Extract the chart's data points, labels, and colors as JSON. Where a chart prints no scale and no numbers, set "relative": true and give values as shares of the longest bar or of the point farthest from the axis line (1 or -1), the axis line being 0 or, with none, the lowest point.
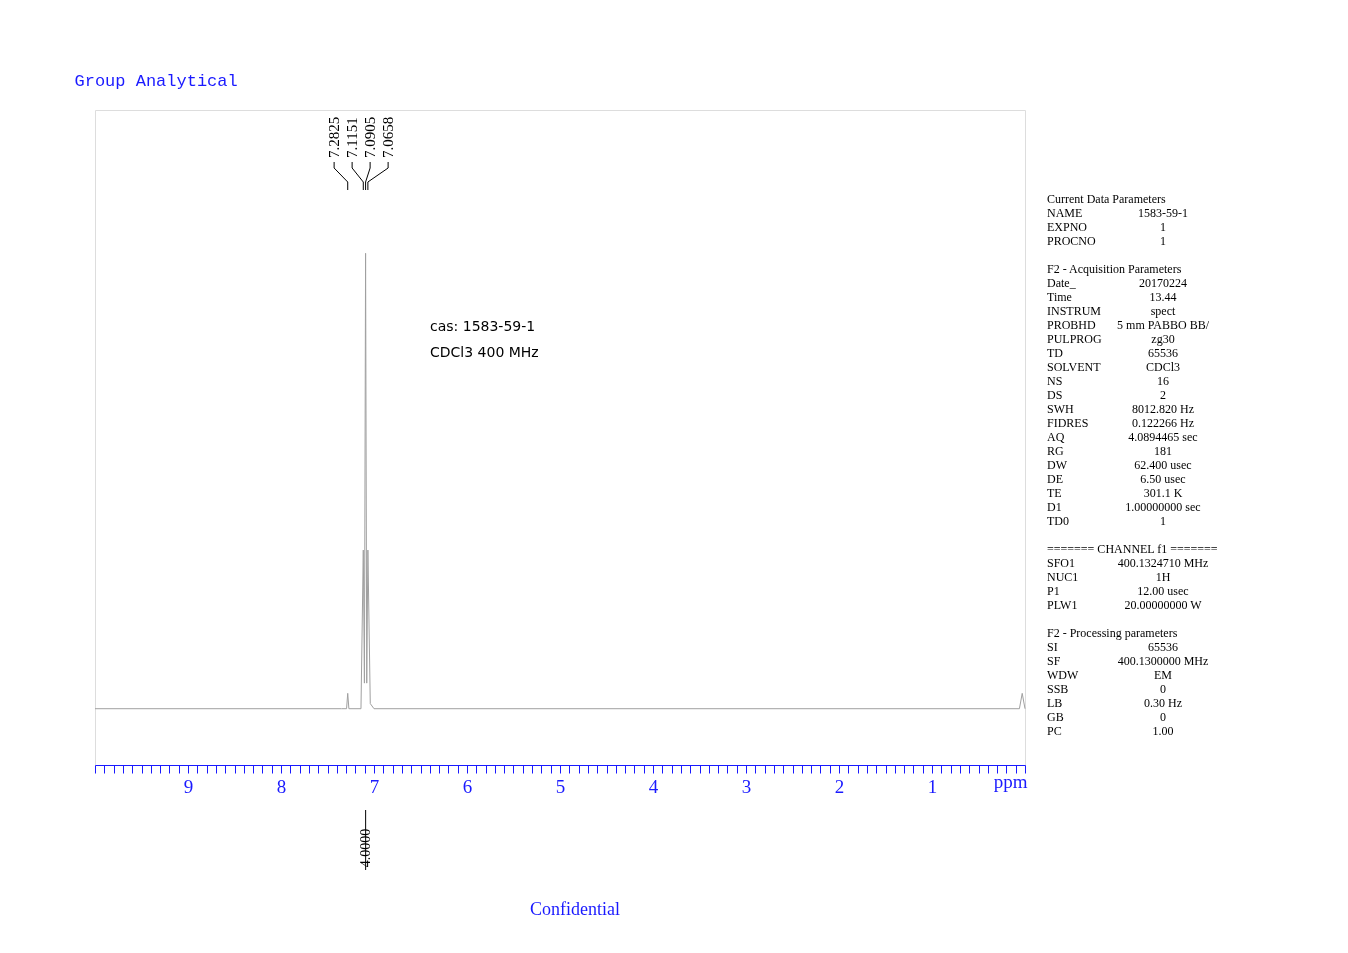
{
  "chart_data": {
    "type": "line",
    "title": "Group Analytical",
    "xlabel": "ppm",
    "relative": true,
    "x": [
      10,
      7.35,
      7.295,
      7.2825,
      7.27,
      7.14,
      7.1151,
      7.103,
      7.0905,
      7.078,
      7.0658,
      7.04,
      7.0,
      0.06,
      0.03,
      0.0
    ],
    "series": [
      {
        "color": "#a0a0a0",
        "values": [
          0.11,
          0.11,
          0.11,
          0.14,
          0.11,
          0.11,
          0.42,
          0.16,
          1,
          0.16,
          0.42,
          0.12,
          0.11,
          0.11,
          0.14,
          0.11
        ]
      }
    ],
    "xlim": [
      10,
      0
    ],
    "xticks": [
      {
        "value": 0,
        "label": null
      },
      {
        "value": 0.1,
        "label": null
      },
      {
        "value": 0.2,
        "label": null
      },
      {
        "value": 0.3,
        "label": null
      },
      {
        "value": 0.4,
        "label": null
      },
      {
        "value": 0.5,
        "label": null
      },
      {
        "value": 0.6,
        "label": null
      },
      {
        "value": 0.7,
        "label": null
      },
      {
        "value": 0.8,
        "label": null
      },
      {
        "value": 0.9,
        "label": null
      },
      1,
      {
        "value": 1.1,
        "label": null
      },
      {
        "value": 1.2,
        "label": null
      },
      {
        "value": 1.3,
        "label": null
      },
      {
        "value": 1.4,
        "label": null
      },
      {
        "value": 1.5,
        "label": null
      },
      {
        "value": 1.6,
        "label": null
      },
      {
        "value": 1.7,
        "label": null
      },
      {
        "value": 1.8,
        "label": null
      },
      {
        "value": 1.9,
        "label": null
      },
      2,
      {
        "value": 2.1,
        "label": null
      },
      {
        "value": 2.2,
        "label": null
      },
      {
        "value": 2.3,
        "label": null
      },
      {
        "value": 2.4,
        "label": null
      },
      {
        "value": 2.5,
        "label": null
      },
      {
        "value": 2.6,
        "label": null
      },
      {
        "value": 2.7,
        "label": null
      },
      {
        "value": 2.8,
        "label": null
      },
      {
        "value": 2.9,
        "label": null
      },
      3,
      {
        "value": 3.1,
        "label": null
      },
      {
        "value": 3.2,
        "label": null
      },
      {
        "value": 3.3,
        "label": null
      },
      {
        "value": 3.4,
        "label": null
      },
      {
        "value": 3.5,
        "label": null
      },
      {
        "value": 3.6,
        "label": null
      },
      {
        "value": 3.7,
        "label": null
      },
      {
        "value": 3.8,
        "label": null
      },
      {
        "value": 3.9,
        "label": null
      },
      4,
      {
        "value": 4.1,
        "label": null
      },
      {
        "value": 4.2,
        "label": null
      },
      {
        "value": 4.3,
        "label": null
      },
      {
        "value": 4.4,
        "label": null
      },
      {
        "value": 4.5,
        "label": null
      },
      {
        "value": 4.6,
        "label": null
      },
      {
        "value": 4.7,
        "label": null
      },
      {
        "value": 4.8,
        "label": null
      },
      {
        "value": 4.9,
        "label": null
      },
      5,
      {
        "value": 5.1,
        "label": null
      },
      {
        "value": 5.2,
        "label": null
      },
      {
        "value": 5.3,
        "label": null
      },
      {
        "value": 5.4,
        "label": null
      },
      {
        "value": 5.5,
        "label": null
      },
      {
        "value": 5.6,
        "label": null
      },
      {
        "value": 5.7,
        "label": null
      },
      {
        "value": 5.8,
        "label": null
      },
      {
        "value": 5.9,
        "label": null
      },
      6,
      {
        "value": 6.1,
        "label": null
      },
      {
        "value": 6.2,
        "label": null
      },
      {
        "value": 6.3,
        "label": null
      },
      {
        "value": 6.4,
        "label": null
      },
      {
        "value": 6.5,
        "label": null
      },
      {
        "value": 6.6,
        "label": null
      },
      {
        "value": 6.7,
        "label": null
      },
      {
        "value": 6.8,
        "label": null
      },
      {
        "value": 6.9,
        "label": null
      },
      7,
      {
        "value": 7.1,
        "label": null
      },
      {
        "value": 7.2,
        "label": null
      },
      {
        "value": 7.3,
        "label": null
      },
      {
        "value": 7.4,
        "label": null
      },
      {
        "value": 7.5,
        "label": null
      },
      {
        "value": 7.6,
        "label": null
      },
      {
        "value": 7.7,
        "label": null
      },
      {
        "value": 7.8,
        "label": null
      },
      {
        "value": 7.9,
        "label": null
      },
      8,
      {
        "value": 8.1,
        "label": null
      },
      {
        "value": 8.2,
        "label": null
      },
      {
        "value": 8.3,
        "label": null
      },
      {
        "value": 8.4,
        "label": null
      },
      {
        "value": 8.5,
        "label": null
      },
      {
        "value": 8.6,
        "label": null
      },
      {
        "value": 8.7,
        "label": null
      },
      {
        "value": 8.8,
        "label": null
      },
      {
        "value": 8.9,
        "label": null
      },
      9,
      {
        "value": 9.1,
        "label": null
      },
      {
        "value": 9.2,
        "label": null
      },
      {
        "value": 9.3,
        "label": null
      },
      {
        "value": 9.4,
        "label": null
      },
      {
        "value": 9.5,
        "label": null
      },
      {
        "value": 9.6,
        "label": null
      },
      {
        "value": 9.7,
        "label": null
      },
      {
        "value": 9.8,
        "label": null
      },
      {
        "value": 9.9,
        "label": null
      },
      {
        "value": 10,
        "label": null
      }
    ],
    "annotations": [
      {
        "text": "7.2825",
        "x": 7.2825
      },
      {
        "text": "7.1151",
        "x": 7.1151
      },
      {
        "text": "7.0905",
        "x": 7.0905
      },
      {
        "text": "7.0658",
        "x": 7.0658
      },
      {
        "text": "4.0000",
        "x": 7.09
      },
      "cas:  1583-59-1",
      "CDCl3  400  MHz",
      "Confidential",
      "Current Data Parameters",
      "NAME\t1583-59-1",
      "EXPNO\t1",
      "PROCNO\t1",
      "F2 - Acquisition Parameters",
      "Date_\t20170224",
      "Time\t13.44",
      "INSTRUM\tspect",
      "PROBHD\t5 mm PABBO BB/",
      "PULPROG\tzg30",
      "TD\t65536",
      "SOLVENT\tCDCl3",
      "NS\t16",
      "DS\t2",
      "SWH\t8012.820 Hz",
      "FIDRES\t0.122266 Hz",
      "AQ\t4.0894465 sec",
      "RG\t181",
      "DW\t62.400 usec",
      "DE\t6.50 usec",
      "TE\t301.1 K",
      "D1\t1.00000000 sec",
      "TD0\t1",
      "======= CHANNEL f1 =======",
      "SFO1\t400.1324710 MHz",
      "NUC1\t1H",
      "P1\t12.00 usec",
      "PLW1\t20.00000000 W",
      "F2 - Processing parameters",
      "SI\t65536",
      "SF\t400.1300000 MHz",
      "WDW\tEM",
      "SSB\t0",
      "LB\t0.30 Hz",
      "GB\t0",
      "PC\t1.00"
    ]
  }
}
